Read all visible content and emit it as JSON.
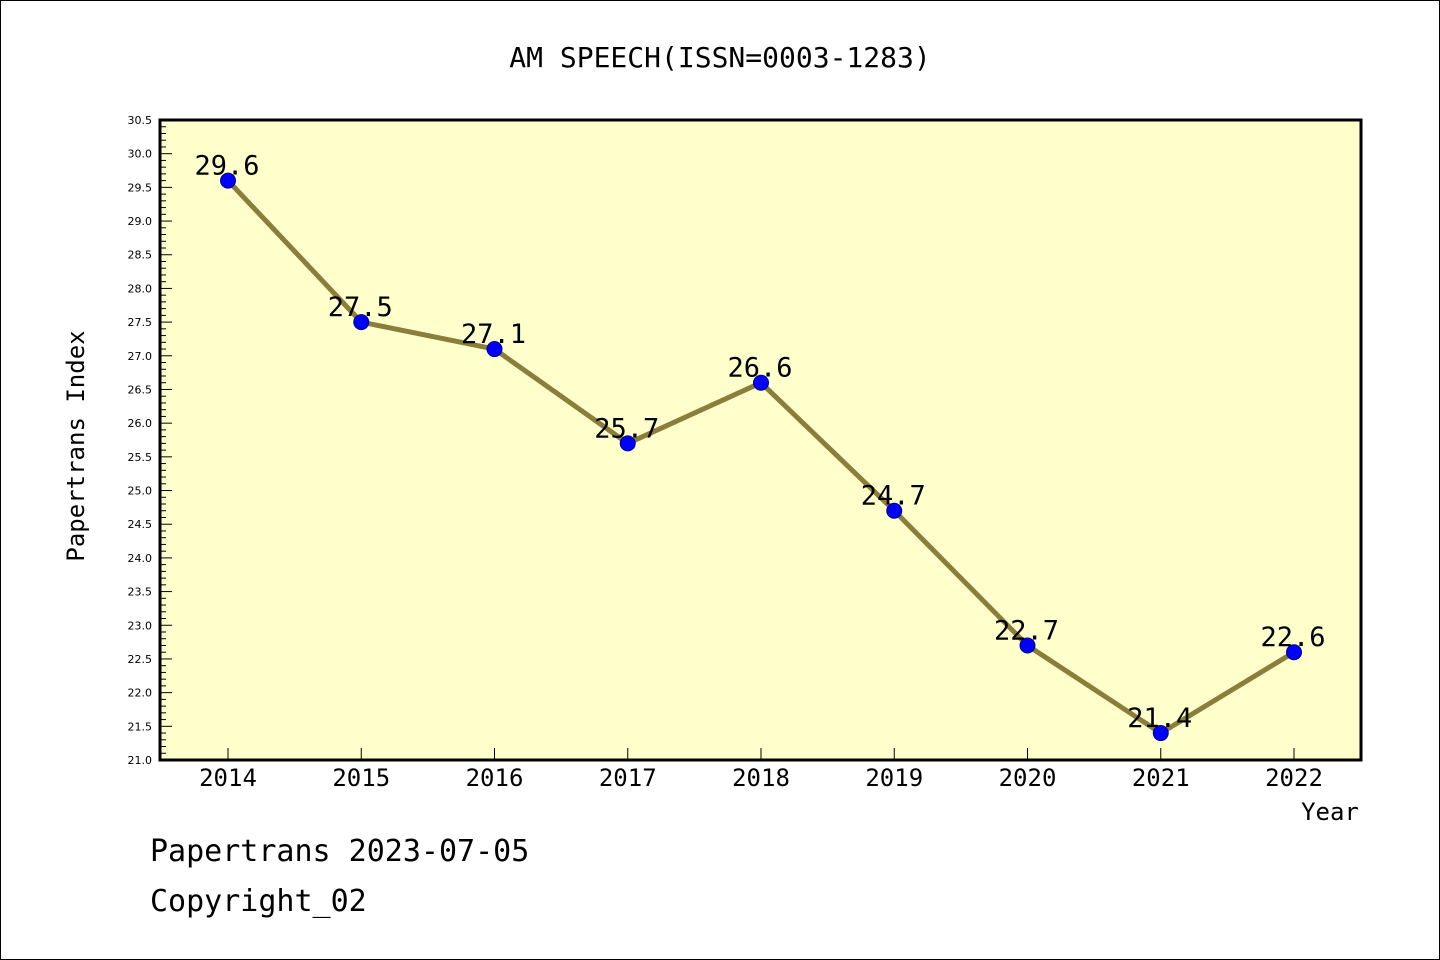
{
  "chart_data": {
    "type": "line",
    "title": "AM SPEECH(ISSN=0003-1283)",
    "xlabel": "Year",
    "ylabel": "Papertrans Index",
    "categories": [
      "2014",
      "2015",
      "2016",
      "2017",
      "2018",
      "2019",
      "2020",
      "2021",
      "2022"
    ],
    "series": [
      {
        "values": [
          29.6,
          27.5,
          27.1,
          25.7,
          26.6,
          24.7,
          22.7,
          21.4,
          22.6
        ],
        "data_labels": [
          "29.6",
          "27.5",
          "27.1",
          "25.7",
          "26.6",
          "24.7",
          "22.7",
          "21.4",
          "22.6"
        ]
      }
    ],
    "ylim": [
      21.0,
      30.5
    ],
    "y_ticks": [
      "21.0",
      "21.5",
      "22.0",
      "22.5",
      "23.0",
      "23.5",
      "24.0",
      "24.5",
      "25.0",
      "25.5",
      "26.0",
      "26.5",
      "27.0",
      "27.5",
      "28.0",
      "28.5",
      "29.0",
      "29.5",
      "30.0",
      "30.5"
    ],
    "grid": false,
    "colors": {
      "plot_background": "#ffffcc",
      "line": "#8b7d3a",
      "marker": "#0000ff"
    }
  },
  "footer": {
    "line1": "Papertrans 2023-07-05",
    "line2": "Copyright_02"
  }
}
